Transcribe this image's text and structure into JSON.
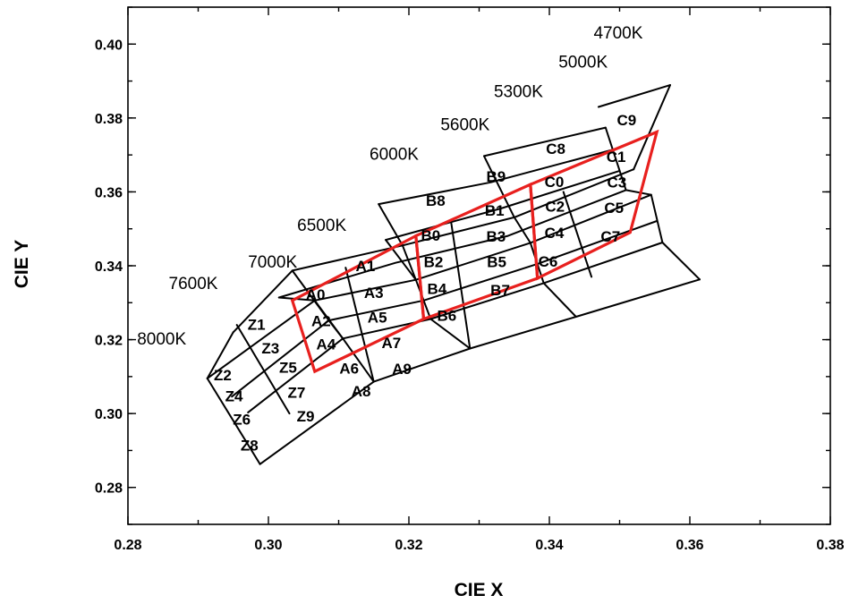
{
  "chart_data": {
    "type": "diagram",
    "title": "",
    "xlabel": "CIE X",
    "ylabel": "CIE Y",
    "xlim": [
      0.28,
      0.38
    ],
    "ylim": [
      0.27,
      0.41
    ],
    "x_ticks": [
      "0.28",
      "0.30",
      "0.32",
      "0.34",
      "0.36",
      "0.38"
    ],
    "y_ticks": [
      "0.28",
      "0.30",
      "0.32",
      "0.34",
      "0.36",
      "0.38",
      "0.40"
    ],
    "grid": false,
    "cct_labels": [
      {
        "text": "8000K",
        "x": 0.2813,
        "y": 0.3187
      },
      {
        "text": "7600K",
        "x": 0.2858,
        "y": 0.3337
      },
      {
        "text": "7000K",
        "x": 0.2971,
        "y": 0.3395
      },
      {
        "text": "6500K",
        "x": 0.3041,
        "y": 0.3495
      },
      {
        "text": "6000K",
        "x": 0.3144,
        "y": 0.3687
      },
      {
        "text": "5600K",
        "x": 0.3245,
        "y": 0.3767
      },
      {
        "text": "5300K",
        "x": 0.3321,
        "y": 0.3857
      },
      {
        "text": "5000K",
        "x": 0.3413,
        "y": 0.3937
      },
      {
        "text": "4700K",
        "x": 0.3463,
        "y": 0.4015
      }
    ],
    "bin_grid_rows": [
      [
        [
          0.2913,
          0.3095
        ],
        [
          0.3066,
          0.3306
        ],
        [
          0.321,
          0.3362
        ],
        [
          0.3373,
          0.3462
        ],
        [
          0.3545,
          0.3592
        ]
      ],
      [
        [
          0.2948,
          0.3046
        ],
        [
          0.3086,
          0.3252
        ],
        [
          0.3221,
          0.3306
        ],
        [
          0.3383,
          0.3405
        ],
        [
          0.3553,
          0.3521
        ]
      ],
      [
        [
          0.2971,
          0.3003
        ],
        [
          0.3106,
          0.3203
        ],
        [
          0.3231,
          0.3256
        ],
        [
          0.3392,
          0.3353
        ],
        [
          0.3561,
          0.3463
        ]
      ],
      [
        [
          0.2988,
          0.2863
        ],
        [
          0.315,
          0.3086
        ],
        [
          0.3287,
          0.3176
        ],
        [
          0.3438,
          0.3262
        ],
        [
          0.3614,
          0.3363
        ]
      ],
      [
        [
          0.295,
          0.322
        ],
        [
          0.3034,
          0.3387
        ],
        [
          0.3191,
          0.3455
        ],
        [
          0.335,
          0.3531
        ],
        [
          0.352,
          0.3661
        ]
      ],
      [
        [
          0.3015,
          0.3314
        ],
        [
          0.3181,
          0.3408
        ],
        [
          0.3341,
          0.3481
        ],
        [
          0.3509,
          0.3605
        ]
      ],
      [
        [
          0.3167,
          0.347
        ],
        [
          0.3331,
          0.3555
        ],
        [
          0.35,
          0.3657
        ]
      ],
      [
        [
          0.3157,
          0.3567
        ],
        [
          0.3317,
          0.3626
        ],
        [
          0.349,
          0.3714
        ]
      ],
      [
        [
          0.3307,
          0.3697
        ],
        [
          0.348,
          0.3774
        ]
      ],
      [
        [
          0.347,
          0.383
        ],
        [
          0.3572,
          0.3889
        ]
      ]
    ],
    "bin_grid_cols": [
      [
        [
          0.2913,
          0.3095
        ],
        [
          0.295,
          0.322
        ]
      ],
      [
        [
          0.2913,
          0.3095
        ],
        [
          0.2988,
          0.2863
        ]
      ],
      [
        [
          0.2955,
          0.324
        ],
        [
          0.303,
          0.3
        ]
      ],
      [
        [
          0.3015,
          0.3314
        ],
        [
          0.3066,
          0.3306
        ],
        [
          0.3106,
          0.3203
        ],
        [
          0.315,
          0.3086
        ]
      ],
      [
        [
          0.3034,
          0.3387
        ],
        [
          0.3086,
          0.3252
        ],
        [
          0.3106,
          0.3203
        ]
      ],
      [
        [
          0.311,
          0.3395
        ],
        [
          0.315,
          0.3086
        ]
      ],
      [
        [
          0.3167,
          0.347
        ],
        [
          0.321,
          0.3362
        ],
        [
          0.3231,
          0.3256
        ],
        [
          0.3287,
          0.3176
        ]
      ],
      [
        [
          0.3157,
          0.3567
        ],
        [
          0.3191,
          0.3455
        ],
        [
          0.321,
          0.3362
        ]
      ],
      [
        [
          0.326,
          0.352
        ],
        [
          0.3287,
          0.3176
        ]
      ],
      [
        [
          0.3307,
          0.3697
        ],
        [
          0.335,
          0.3531
        ],
        [
          0.3373,
          0.3462
        ],
        [
          0.3392,
          0.3353
        ],
        [
          0.3438,
          0.3262
        ]
      ],
      [
        [
          0.342,
          0.36
        ],
        [
          0.346,
          0.337
        ]
      ],
      [
        [
          0.348,
          0.3774
        ],
        [
          0.3509,
          0.3605
        ],
        [
          0.3545,
          0.3592
        ],
        [
          0.3561,
          0.3463
        ],
        [
          0.3614,
          0.3363
        ]
      ],
      [
        [
          0.3572,
          0.3889
        ],
        [
          0.352,
          0.3661
        ]
      ]
    ],
    "red_bins": [
      {
        "name": "A",
        "points": [
          [
            0.3034,
            0.3306
          ],
          [
            0.321,
            0.3481
          ],
          [
            0.3221,
            0.3256
          ],
          [
            0.3066,
            0.3114
          ]
        ]
      },
      {
        "name": "B",
        "points": [
          [
            0.321,
            0.3481
          ],
          [
            0.3373,
            0.362
          ],
          [
            0.3383,
            0.3366
          ],
          [
            0.3221,
            0.3256
          ]
        ]
      },
      {
        "name": "C",
        "points": [
          [
            0.3373,
            0.362
          ],
          [
            0.3553,
            0.3762
          ],
          [
            0.3515,
            0.349
          ],
          [
            0.3383,
            0.3366
          ]
        ]
      }
    ],
    "bin_labels": [
      {
        "text": "Z1",
        "x": 0.2983,
        "y": 0.3227
      },
      {
        "text": "Z3",
        "x": 0.3003,
        "y": 0.3163
      },
      {
        "text": "Z2",
        "x": 0.2935,
        "y": 0.309
      },
      {
        "text": "Z5",
        "x": 0.3028,
        "y": 0.311
      },
      {
        "text": "Z4",
        "x": 0.2951,
        "y": 0.3033
      },
      {
        "text": "Z7",
        "x": 0.304,
        "y": 0.3043
      },
      {
        "text": "Z6",
        "x": 0.2962,
        "y": 0.297
      },
      {
        "text": "Z9",
        "x": 0.3053,
        "y": 0.2978
      },
      {
        "text": "Z8",
        "x": 0.2973,
        "y": 0.29
      },
      {
        "text": "A0",
        "x": 0.3067,
        "y": 0.3308
      },
      {
        "text": "A1",
        "x": 0.3138,
        "y": 0.3385
      },
      {
        "text": "A2",
        "x": 0.3075,
        "y": 0.3236
      },
      {
        "text": "A3",
        "x": 0.315,
        "y": 0.3313
      },
      {
        "text": "A4",
        "x": 0.3082,
        "y": 0.3173
      },
      {
        "text": "A5",
        "x": 0.3155,
        "y": 0.3246
      },
      {
        "text": "A6",
        "x": 0.3115,
        "y": 0.3108
      },
      {
        "text": "A7",
        "x": 0.3175,
        "y": 0.3177
      },
      {
        "text": "A8",
        "x": 0.3132,
        "y": 0.3046
      },
      {
        "text": "A9",
        "x": 0.319,
        "y": 0.3107
      },
      {
        "text": "B8",
        "x": 0.3238,
        "y": 0.3562
      },
      {
        "text": "B9",
        "x": 0.3324,
        "y": 0.3628
      },
      {
        "text": "B0",
        "x": 0.3231,
        "y": 0.3468
      },
      {
        "text": "B1",
        "x": 0.3322,
        "y": 0.3536
      },
      {
        "text": "B2",
        "x": 0.3235,
        "y": 0.3396
      },
      {
        "text": "B3",
        "x": 0.3324,
        "y": 0.3466
      },
      {
        "text": "B4",
        "x": 0.324,
        "y": 0.3324
      },
      {
        "text": "B5",
        "x": 0.3325,
        "y": 0.3396
      },
      {
        "text": "B6",
        "x": 0.3254,
        "y": 0.3251
      },
      {
        "text": "B7",
        "x": 0.333,
        "y": 0.332
      },
      {
        "text": "C8",
        "x": 0.3409,
        "y": 0.3703
      },
      {
        "text": "C9",
        "x": 0.351,
        "y": 0.378
      },
      {
        "text": "C0",
        "x": 0.3407,
        "y": 0.3613
      },
      {
        "text": "C1",
        "x": 0.3495,
        "y": 0.3681
      },
      {
        "text": "C2",
        "x": 0.3408,
        "y": 0.3547
      },
      {
        "text": "C3",
        "x": 0.3496,
        "y": 0.3612
      },
      {
        "text": "C4",
        "x": 0.3407,
        "y": 0.3475
      },
      {
        "text": "C5",
        "x": 0.3492,
        "y": 0.3543
      },
      {
        "text": "C6",
        "x": 0.3398,
        "y": 0.3398
      },
      {
        "text": "C7",
        "x": 0.3487,
        "y": 0.3465
      }
    ]
  }
}
